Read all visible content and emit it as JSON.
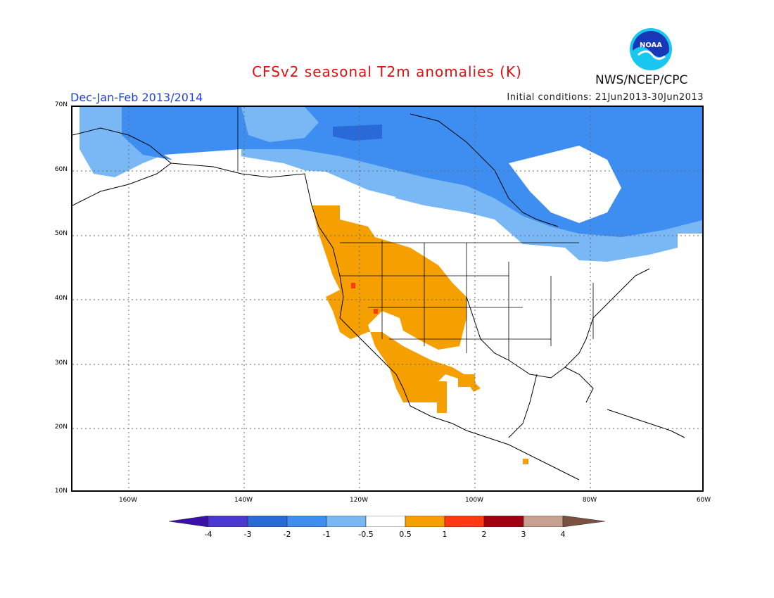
{
  "header": {
    "title": "CFSv2 seasonal T2m anomalies (K)",
    "period": "Dec-Jan-Feb 2013/2014",
    "initial_conditions": "Initial conditions: 21Jun2013-30Jun2013",
    "agency": "NWS/NCEP/CPC",
    "logo_text": "NOAA"
  },
  "map": {
    "projection": "lat-lon",
    "lon_range": [
      -171,
      -60
    ],
    "lat_range": [
      10,
      70
    ],
    "lat_ticks": [
      "70N",
      "60N",
      "50N",
      "40N",
      "30N",
      "20N",
      "10N"
    ],
    "lon_ticks": [
      "160W",
      "140W",
      "120W",
      "100W",
      "80W",
      "60W"
    ],
    "gridlines": "dotted"
  },
  "colorbar": {
    "labels": [
      "-4",
      "-3",
      "-2",
      "-1",
      "-0.5",
      "0.5",
      "1",
      "2",
      "3",
      "4"
    ],
    "colors": [
      "#3a10a8",
      "#4a38d0",
      "#2a6ad8",
      "#3d8ef0",
      "#7ab8f5",
      "#ffffff",
      "#f5a000",
      "#ff3a10",
      "#a00010",
      "#c8a090",
      "#7a5040"
    ]
  }
}
